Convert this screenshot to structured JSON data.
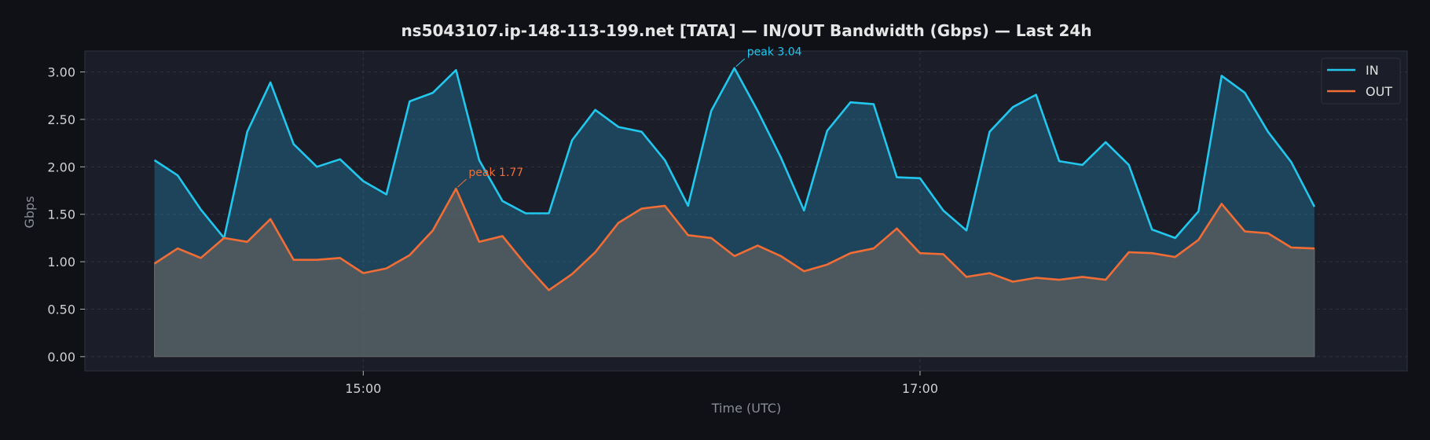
{
  "chart_data": {
    "type": "area",
    "title": "ns5043107.ip-148-113-199.net [TATA] — IN/OUT Bandwidth (Gbps) — Last 24h",
    "xlabel": "Time (UTC)",
    "ylabel": "Gbps",
    "ylim": [
      -0.15,
      3.22
    ],
    "yticks": [
      0.0,
      0.5,
      1.0,
      1.5,
      2.0,
      2.5,
      3.0
    ],
    "ytick_labels": [
      "0.00",
      "0.50",
      "1.00",
      "1.50",
      "2.00",
      "2.50",
      "3.00"
    ],
    "x_range_hours": [
      14.0,
      18.75
    ],
    "x_start_time": "14:15",
    "x_step_minutes": 5,
    "xticks": [
      {
        "t": 15.0,
        "label": "15:00"
      },
      {
        "t": 17.0,
        "label": "17:00"
      }
    ],
    "grid": true,
    "legend_position": "top-right",
    "series": [
      {
        "name": "IN",
        "color": "#22c7ee",
        "values": [
          2.07,
          1.91,
          1.55,
          1.25,
          2.37,
          2.89,
          2.24,
          2.0,
          2.08,
          1.85,
          1.71,
          2.69,
          2.78,
          3.02,
          2.07,
          1.64,
          1.51,
          1.51,
          2.28,
          2.6,
          2.42,
          2.37,
          2.07,
          1.59,
          2.59,
          3.04,
          2.59,
          2.1,
          1.54,
          2.38,
          2.68,
          2.66,
          1.89,
          1.88,
          1.54,
          1.33,
          2.37,
          2.63,
          2.76,
          2.06,
          2.02,
          2.26,
          2.02,
          1.34,
          1.25,
          1.53,
          2.96,
          2.78,
          2.37,
          2.05,
          1.58
        ]
      },
      {
        "name": "OUT",
        "color": "#f26d35",
        "values": [
          0.98,
          1.14,
          1.04,
          1.25,
          1.21,
          1.45,
          1.02,
          1.02,
          1.04,
          0.88,
          0.93,
          1.07,
          1.33,
          1.77,
          1.21,
          1.27,
          0.97,
          0.7,
          0.87,
          1.1,
          1.41,
          1.56,
          1.59,
          1.28,
          1.25,
          1.06,
          1.17,
          1.06,
          0.9,
          0.97,
          1.09,
          1.14,
          1.35,
          1.09,
          1.08,
          0.84,
          0.88,
          0.79,
          0.83,
          0.81,
          0.84,
          0.81,
          1.1,
          1.09,
          1.05,
          1.23,
          1.61,
          1.32,
          1.3,
          1.15,
          1.14
        ]
      }
    ],
    "annotations": [
      {
        "text": "peak 3.04",
        "series": "IN",
        "index": 25,
        "color": "#22c7ee"
      },
      {
        "text": "peak 1.77",
        "series": "OUT",
        "index": 13,
        "color": "#f26d35"
      }
    ]
  }
}
